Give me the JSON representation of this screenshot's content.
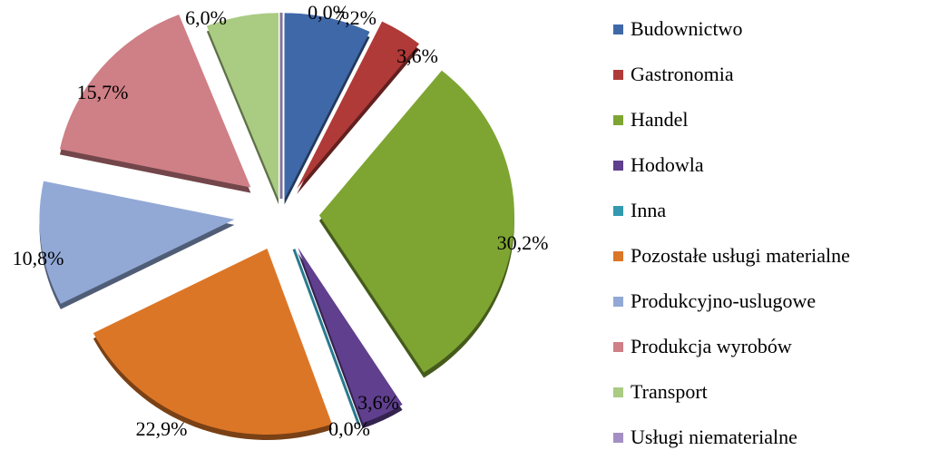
{
  "chart_data": {
    "type": "pie",
    "categories": [
      "Budownictwo",
      "Gastronomia",
      "Handel",
      "Hodowla",
      "Inna",
      "Pozostałe usługi materialne",
      "Produkcyjno-uslugowe",
      "Produkcja wyrobów",
      "Transport",
      "Usługi niematerialne"
    ],
    "values": [
      7.2,
      3.6,
      30.2,
      3.6,
      0.0,
      22.9,
      10.8,
      15.7,
      6.0,
      0.0
    ],
    "labels": [
      "7,2%",
      "3,6%",
      "30,2%",
      "3,6%",
      "0,0%",
      "22,9%",
      "10,8%",
      "15,7%",
      "6,0%",
      "0,0%"
    ],
    "colors": [
      "#3f68a8",
      "#b03a38",
      "#7ea532",
      "#5f3f8e",
      "#3399b0",
      "#dc7627",
      "#92a9d6",
      "#cf7f86",
      "#aacb82",
      "#a48fc4"
    ],
    "legend_position": "right",
    "exploded": true,
    "style": "3d"
  }
}
